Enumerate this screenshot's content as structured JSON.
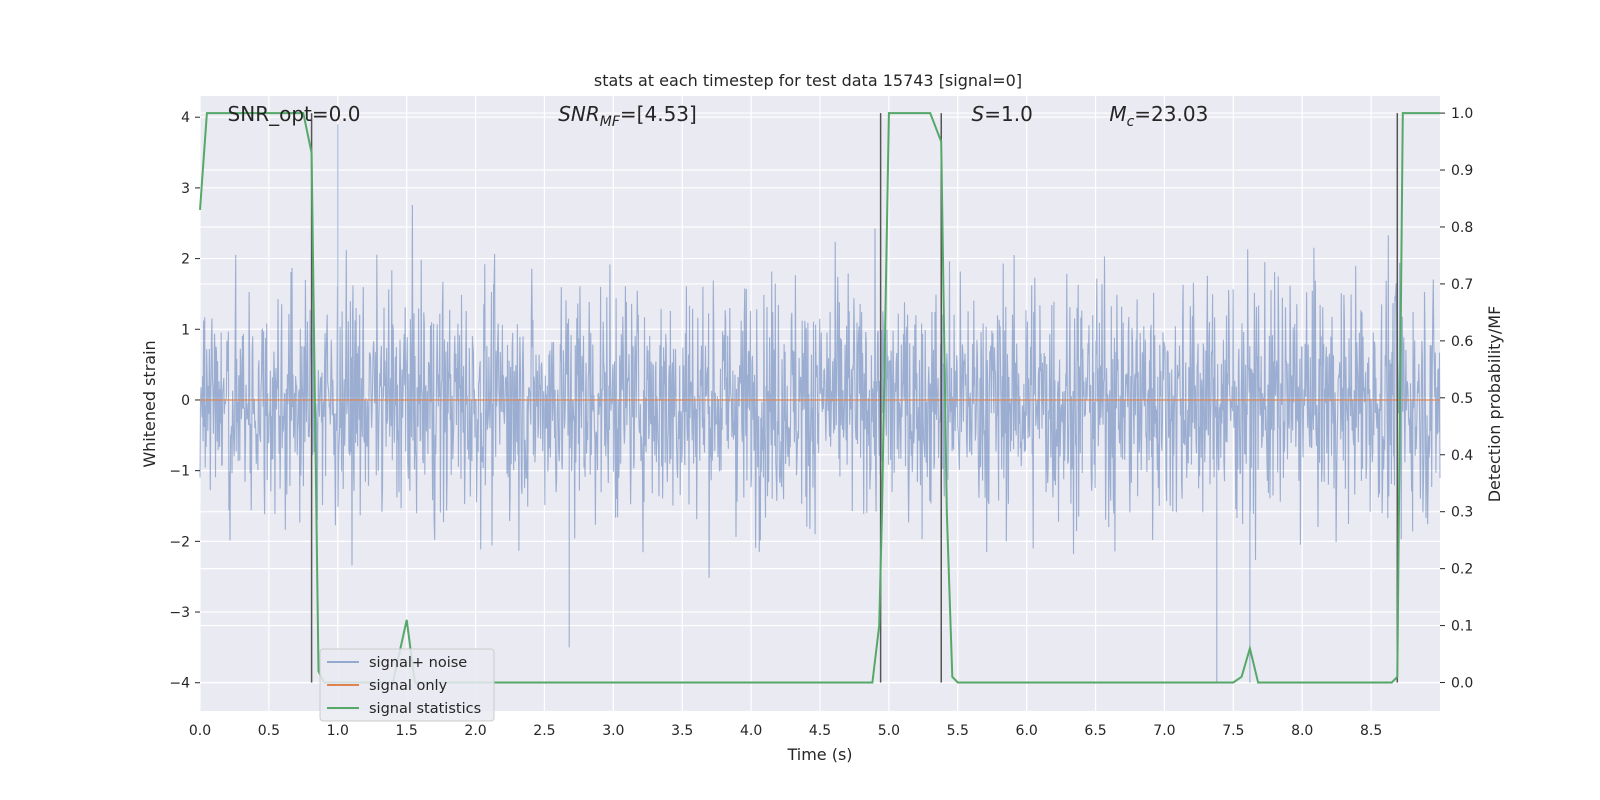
{
  "chart_data": {
    "type": "line",
    "title": "stats at each timestep for test data 15743 [signal=0]",
    "xlabel": "Time (s)",
    "ylabel_left": "Whitened strain",
    "ylabel_right": "Detection probability/MF",
    "xlim": [
      0,
      9.0
    ],
    "ylim_left": [
      -4.4,
      4.3
    ],
    "ylim_right": [
      -0.05,
      1.03
    ],
    "x_ticks": [
      "0.0",
      "0.5",
      "1.0",
      "1.5",
      "2.0",
      "2.5",
      "3.0",
      "3.5",
      "4.0",
      "4.5",
      "5.0",
      "5.5",
      "6.0",
      "6.5",
      "7.0",
      "7.5",
      "8.0",
      "8.5"
    ],
    "y_ticks_left": [
      "−4",
      "−3",
      "−2",
      "−1",
      "0",
      "1",
      "2",
      "3",
      "4"
    ],
    "y_ticks_right": [
      "0.0",
      "0.1",
      "0.2",
      "0.3",
      "0.4",
      "0.5",
      "0.6",
      "0.7",
      "0.8",
      "0.9",
      "1.0"
    ],
    "annotations": [
      {
        "label": "SNR_opt=0.0",
        "at": 0.2
      },
      {
        "label": "SNR_MF=[4.53]",
        "at": 2.6
      },
      {
        "label": "S=1.0",
        "at": 5.6
      },
      {
        "label": "M_c=23.03",
        "at": 6.6
      }
    ],
    "vertical_lines_x": [
      0.81,
      4.94,
      5.38,
      8.69
    ],
    "grid": true,
    "legend_position": "lower-left",
    "colors": {
      "background": "#eaeaf2",
      "grid": "#ffffff",
      "signal_noise": "#4c72b0",
      "signal_only": "#dd8452",
      "signal_statistics": "#55a868",
      "vlines": "#555555"
    },
    "series": [
      {
        "name": "signal+ noise",
        "axis": "left",
        "description_values": "dense white noise, envelope about ±2.5, max ≈3.9, min ≈−4.0",
        "envelope_peak": 2.5,
        "extremes": [
          {
            "x": 1.0,
            "y": 3.9
          },
          {
            "x": 7.38,
            "y": -4.0
          },
          {
            "x": 2.68,
            "y": -3.5
          },
          {
            "x": 7.62,
            "y": -4.0
          }
        ]
      },
      {
        "name": "signal only",
        "axis": "left",
        "x": [
          0,
          9.0
        ],
        "y": [
          0,
          0
        ]
      },
      {
        "name": "signal statistics",
        "axis": "right",
        "x": [
          0.0,
          0.05,
          0.1,
          0.2,
          0.6,
          0.75,
          0.81,
          0.86,
          0.9,
          1.0,
          1.2,
          1.4,
          1.5,
          1.56,
          1.6,
          2.0,
          3.0,
          4.0,
          4.88,
          4.93,
          4.95,
          5.0,
          5.1,
          5.3,
          5.38,
          5.42,
          5.46,
          5.5,
          5.8,
          6.0,
          7.0,
          7.5,
          7.56,
          7.62,
          7.68,
          7.75,
          8.0,
          8.65,
          8.69,
          8.73,
          8.78,
          8.85,
          9.0
        ],
        "y": [
          0.83,
          1.0,
          1.0,
          1.0,
          1.0,
          1.0,
          0.93,
          0.02,
          0.0,
          0.0,
          0.0,
          0.0,
          0.11,
          0.0,
          0.0,
          0.0,
          0.0,
          0.0,
          0.0,
          0.1,
          0.3,
          1.0,
          1.0,
          1.0,
          0.95,
          0.3,
          0.01,
          0.0,
          0.0,
          0.0,
          0.0,
          0.0,
          0.01,
          0.06,
          0.0,
          0.0,
          0.0,
          0.0,
          0.01,
          1.0,
          1.0,
          1.0,
          1.0
        ]
      }
    ]
  }
}
